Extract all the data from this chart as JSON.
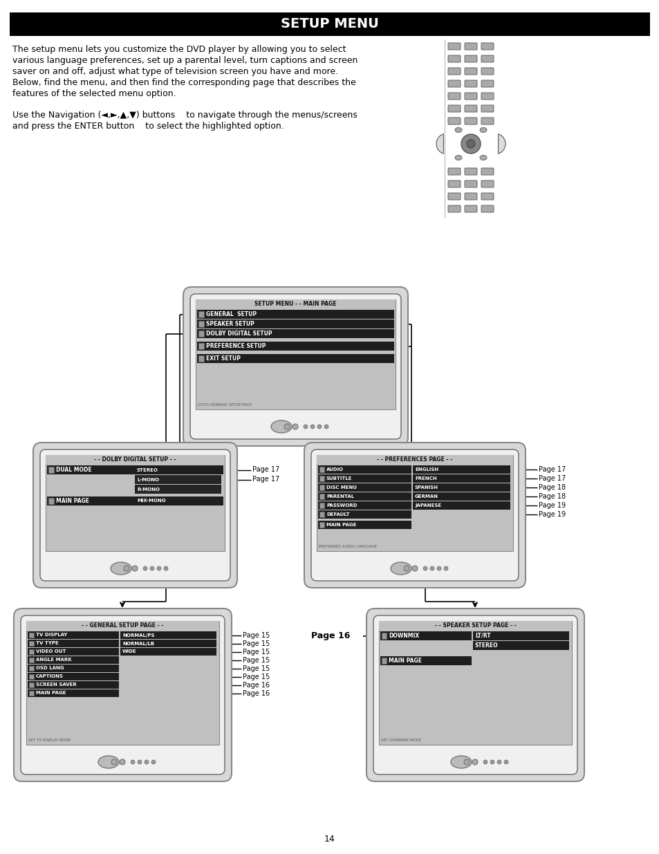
{
  "title": "SETUP MENU",
  "bg_color": "#ffffff",
  "body_text_1": [
    "The setup menu lets you customize the DVD player by allowing you to select",
    "various language preferences, set up a parental level, turn captions and screen",
    "saver on and off, adjust what type of television screen you have and more.",
    "Below, find the menu, and then find the corresponding page that describes the",
    "features of the selected menu option."
  ],
  "body_text_2": [
    "Use the Navigation (◄,►,▲,▼) buttons    to navigate through the menus/screens",
    "and press the ENTER button    to select the highlighted option."
  ],
  "page_number": "14",
  "main_menu_title": "SETUP MENU - - MAIN PAGE",
  "main_menu_items": [
    "GENERAL  SETUP",
    "SPEAKER SETUP",
    "DOLBY DIGITAL SETUP",
    "PREFERENCE SETUP",
    "EXIT SETUP"
  ],
  "main_menu_footer": "GOTO GENERAL SETUP PAGE",
  "dolby_title": "- - DOLBY DIGITAL SETUP - -",
  "dolby_left": [
    "DUAL MODE",
    "MAIN PAGE"
  ],
  "dolby_right_rows": [
    "STEREO",
    "L-MONO",
    "R-MONO",
    "MIX-MONO"
  ],
  "dolby_pages": [
    "Page 17",
    "Page 17"
  ],
  "pref_title": "- - PREFERENCES PAGE - -",
  "pref_left": [
    "AUDIO",
    "SUBTITLE",
    "DISC MENU",
    "PARENTAL",
    "PASSWORD",
    "DEFAULT"
  ],
  "pref_right": [
    "ENGLISH",
    "FRENCH",
    "SPANISH",
    "GERMAN",
    "JAPANESE"
  ],
  "pref_main": "MAIN PAGE",
  "pref_footer": "PREFERRED AUDIO LANGUAGE",
  "pref_pages": [
    "Page 17",
    "Page 17",
    "Page 18",
    "Page 18",
    "Page 19",
    "Page 19"
  ],
  "general_title": "- - GENERAL SETUP PAGE - -",
  "general_left": [
    "TV DISPLAY",
    "TV TYPE",
    "VIDEO OUT",
    "ANGLE MARK",
    "OSD LANG",
    "CAPTIONS",
    "SCREEN SAVER",
    "MAIN PAGE"
  ],
  "general_right": [
    "NORMAL/PS",
    "NORMAL/LB",
    "WIDE",
    "",
    "",
    "",
    "",
    ""
  ],
  "general_footer": "SET TV DISPLAY MODE",
  "general_pages": [
    "Page 15",
    "Page 15",
    "Page 15",
    "Page 15",
    "Page 15",
    "Page 15",
    "Page 16",
    "Page 16"
  ],
  "speaker_title": "- - SPEAKER SETUP PAGE - -",
  "speaker_left": [
    "DOWNMIX",
    "MAIN PAGE"
  ],
  "speaker_right": [
    "LT/RT",
    "STEREO"
  ],
  "speaker_footer": "SET DOWNMIX MODE",
  "speaker_page": "Page 16",
  "bezel_color": "#cccccc",
  "bezel_edge": "#888888",
  "screen_color": "#bbbbbb",
  "item_dark": "#2a2a2a",
  "item_darker": "#111111"
}
